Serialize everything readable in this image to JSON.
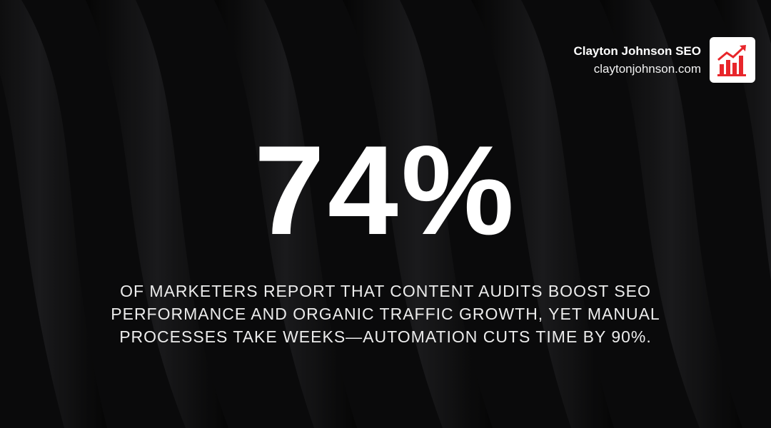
{
  "brand": {
    "name": "Clayton Johnson SEO",
    "url": "claytonjohnson.com"
  },
  "stat": {
    "value": "74%",
    "description_lines": [
      "OF MARKETERS REPORT THAT CONTENT AUDITS BOOST SEO",
      "PERFORMANCE AND ORGANIC TRAFFIC GROWTH, YET MANUAL",
      "PROCESSES TAKE WEEKS—AUTOMATION CUTS TIME BY 90%."
    ]
  }
}
